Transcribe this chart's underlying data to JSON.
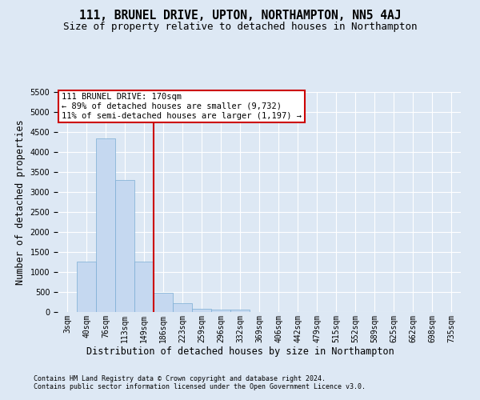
{
  "title": "111, BRUNEL DRIVE, UPTON, NORTHAMPTON, NN5 4AJ",
  "subtitle": "Size of property relative to detached houses in Northampton",
  "xlabel": "Distribution of detached houses by size in Northampton",
  "ylabel": "Number of detached properties",
  "footnote1": "Contains HM Land Registry data © Crown copyright and database right 2024.",
  "footnote2": "Contains public sector information licensed under the Open Government Licence v3.0.",
  "bin_labels": [
    "3sqm",
    "40sqm",
    "76sqm",
    "113sqm",
    "149sqm",
    "186sqm",
    "223sqm",
    "259sqm",
    "296sqm",
    "332sqm",
    "369sqm",
    "406sqm",
    "442sqm",
    "479sqm",
    "515sqm",
    "552sqm",
    "589sqm",
    "625sqm",
    "662sqm",
    "698sqm",
    "735sqm"
  ],
  "bar_values": [
    0,
    1270,
    4350,
    3300,
    1270,
    480,
    215,
    90,
    60,
    55,
    0,
    0,
    0,
    0,
    0,
    0,
    0,
    0,
    0,
    0,
    0
  ],
  "bar_color": "#c5d8f0",
  "bar_edge_color": "#7badd4",
  "vline_x_index": 5,
  "vline_color": "#cc0000",
  "ylim": [
    0,
    5500
  ],
  "yticks": [
    0,
    500,
    1000,
    1500,
    2000,
    2500,
    3000,
    3500,
    4000,
    4500,
    5000,
    5500
  ],
  "annotation_text": "111 BRUNEL DRIVE: 170sqm\n← 89% of detached houses are smaller (9,732)\n11% of semi-detached houses are larger (1,197) →",
  "annotation_box_color": "#ffffff",
  "annotation_box_edge_color": "#cc0000",
  "bg_color": "#dde8f4",
  "plot_bg_color": "#dde8f4",
  "title_fontsize": 10.5,
  "subtitle_fontsize": 9,
  "axis_label_fontsize": 8.5,
  "tick_fontsize": 7,
  "annotation_fontsize": 7.5,
  "footnote_fontsize": 6
}
